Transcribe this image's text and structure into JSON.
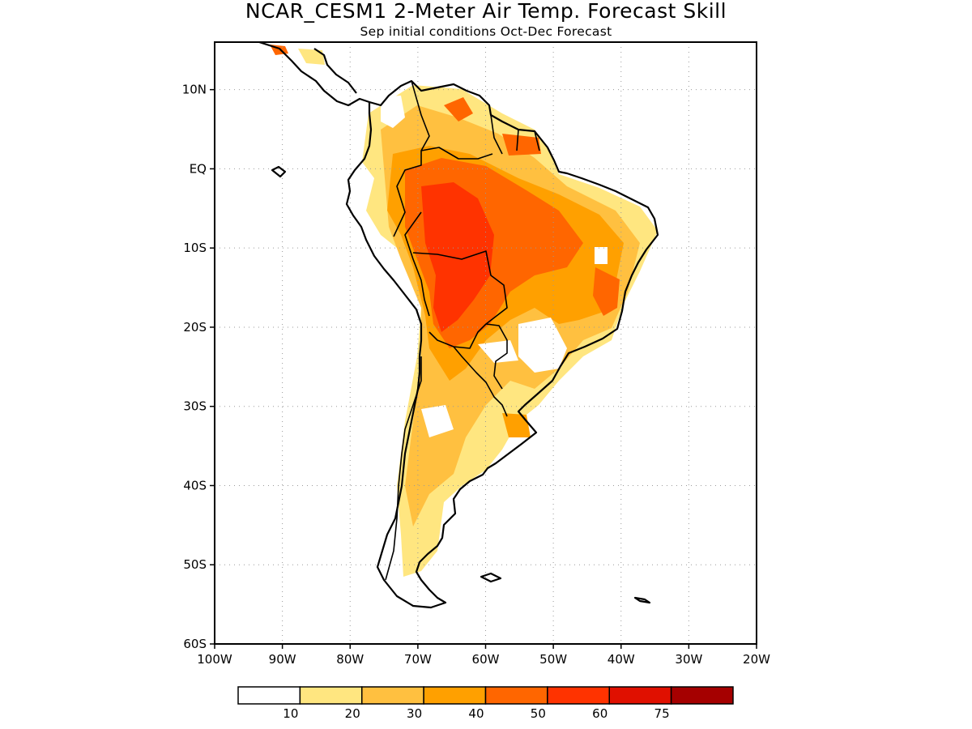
{
  "title": "NCAR_CESM1 2-Meter Air Temp. Forecast Skill",
  "subtitle": "Sep initial conditions  Oct-Dec Forecast",
  "axes": {
    "lat_labels": [
      "10N",
      "EQ",
      "10S",
      "20S",
      "30S",
      "40S",
      "50S",
      "60S"
    ],
    "lon_labels": [
      "100W",
      "90W",
      "80W",
      "70W",
      "60W",
      "50W",
      "40W",
      "30W",
      "20W"
    ],
    "lon_range": [
      -100,
      -20
    ],
    "lat_range": [
      -60,
      16
    ]
  },
  "colorbar": {
    "labels": [
      "10",
      "20",
      "30",
      "40",
      "50",
      "60",
      "75"
    ],
    "colors": [
      "#ffffff",
      "#ffe680",
      "#ffc040",
      "#ffa000",
      "#ff6600",
      "#ff3300",
      "#e01000",
      "#a50000"
    ]
  },
  "chart_data": {
    "type": "heatmap",
    "title": "NCAR_CESM1 2-Meter Air Temp. Forecast Skill",
    "subtitle": "Sep initial conditions  Oct-Dec Forecast",
    "region": "South America",
    "xlim": [
      -100,
      -20
    ],
    "ylim": [
      -60,
      16
    ],
    "levels": [
      10,
      20,
      30,
      40,
      50,
      60,
      75
    ],
    "colors": [
      "#ffffff",
      "#ffe680",
      "#ffc040",
      "#ffa000",
      "#ff6600",
      "#ff3300",
      "#e01000",
      "#a50000"
    ],
    "grid": true
  }
}
